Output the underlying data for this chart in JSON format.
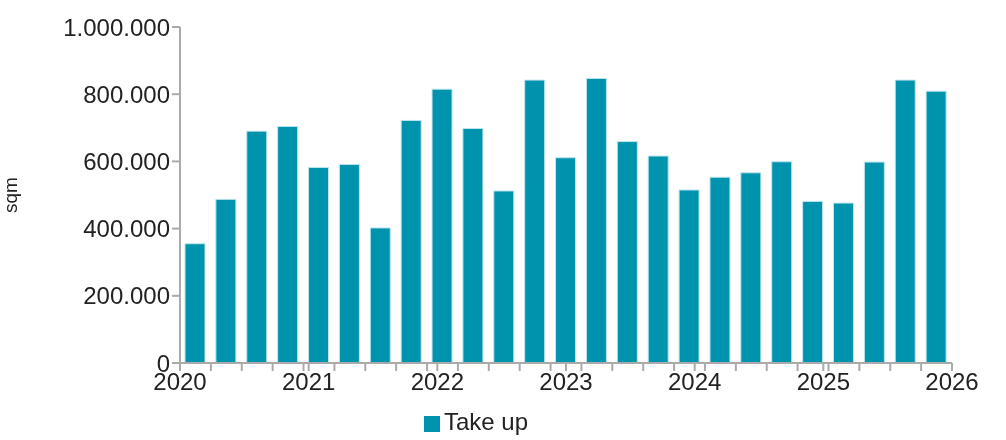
{
  "chart_data": {
    "type": "bar",
    "ylabel": "sqm",
    "x": [
      2020.12,
      2020.36,
      2020.6,
      2020.84,
      2021.08,
      2021.32,
      2021.56,
      2021.8,
      2022.04,
      2022.28,
      2022.52,
      2022.76,
      2023.0,
      2023.24,
      2023.48,
      2023.72,
      2023.96,
      2024.2,
      2024.44,
      2024.68,
      2024.92,
      2025.16,
      2025.4,
      2025.64,
      2025.88
    ],
    "series": [
      {
        "name": "Take up",
        "color": "#0093ad",
        "values": [
          355000,
          487000,
          690000,
          704000,
          582000,
          591000,
          402000,
          722000,
          815000,
          698000,
          512000,
          842000,
          611000,
          847000,
          659000,
          616000,
          515000,
          553000,
          566000,
          599000,
          481000,
          476000,
          598000,
          842000,
          809000
        ]
      }
    ],
    "xlim": [
      2020,
      2026
    ],
    "xticks": [
      2020,
      {
        "value": 2020.24,
        "label": null
      },
      {
        "value": 2020.48,
        "label": null
      },
      {
        "value": 2020.72,
        "label": null
      },
      {
        "value": 2020.96,
        "label": null
      },
      2021,
      {
        "value": 2021.2,
        "label": null
      },
      {
        "value": 2021.44,
        "label": null
      },
      {
        "value": 2021.68,
        "label": null
      },
      {
        "value": 2021.92,
        "label": null
      },
      2022,
      {
        "value": 2022.16,
        "label": null
      },
      {
        "value": 2022.4,
        "label": null
      },
      {
        "value": 2022.64,
        "label": null
      },
      {
        "value": 2022.88,
        "label": null
      },
      2023,
      {
        "value": 2023.12,
        "label": null
      },
      {
        "value": 2023.36,
        "label": null
      },
      {
        "value": 2023.6,
        "label": null
      },
      {
        "value": 2023.84,
        "label": null
      },
      2024,
      {
        "value": 2024.08,
        "label": null
      },
      {
        "value": 2024.32,
        "label": null
      },
      {
        "value": 2024.56,
        "label": null
      },
      {
        "value": 2024.8,
        "label": null
      },
      2025,
      {
        "value": 2025.04,
        "label": null
      },
      {
        "value": 2025.28,
        "label": null
      },
      {
        "value": 2025.52,
        "label": null
      },
      {
        "value": 2025.76,
        "label": null
      },
      2026
    ],
    "ylim": [
      0,
      1000000
    ],
    "yticks": [
      0,
      {
        "value": 200000,
        "label": "200.000"
      },
      {
        "value": 400000,
        "label": "400.000"
      },
      {
        "value": 600000,
        "label": "600.000"
      },
      {
        "value": 800000,
        "label": "800.000"
      },
      {
        "value": 1000000,
        "label": "1.000.000"
      }
    ],
    "grid": false,
    "legend": "bottom"
  }
}
